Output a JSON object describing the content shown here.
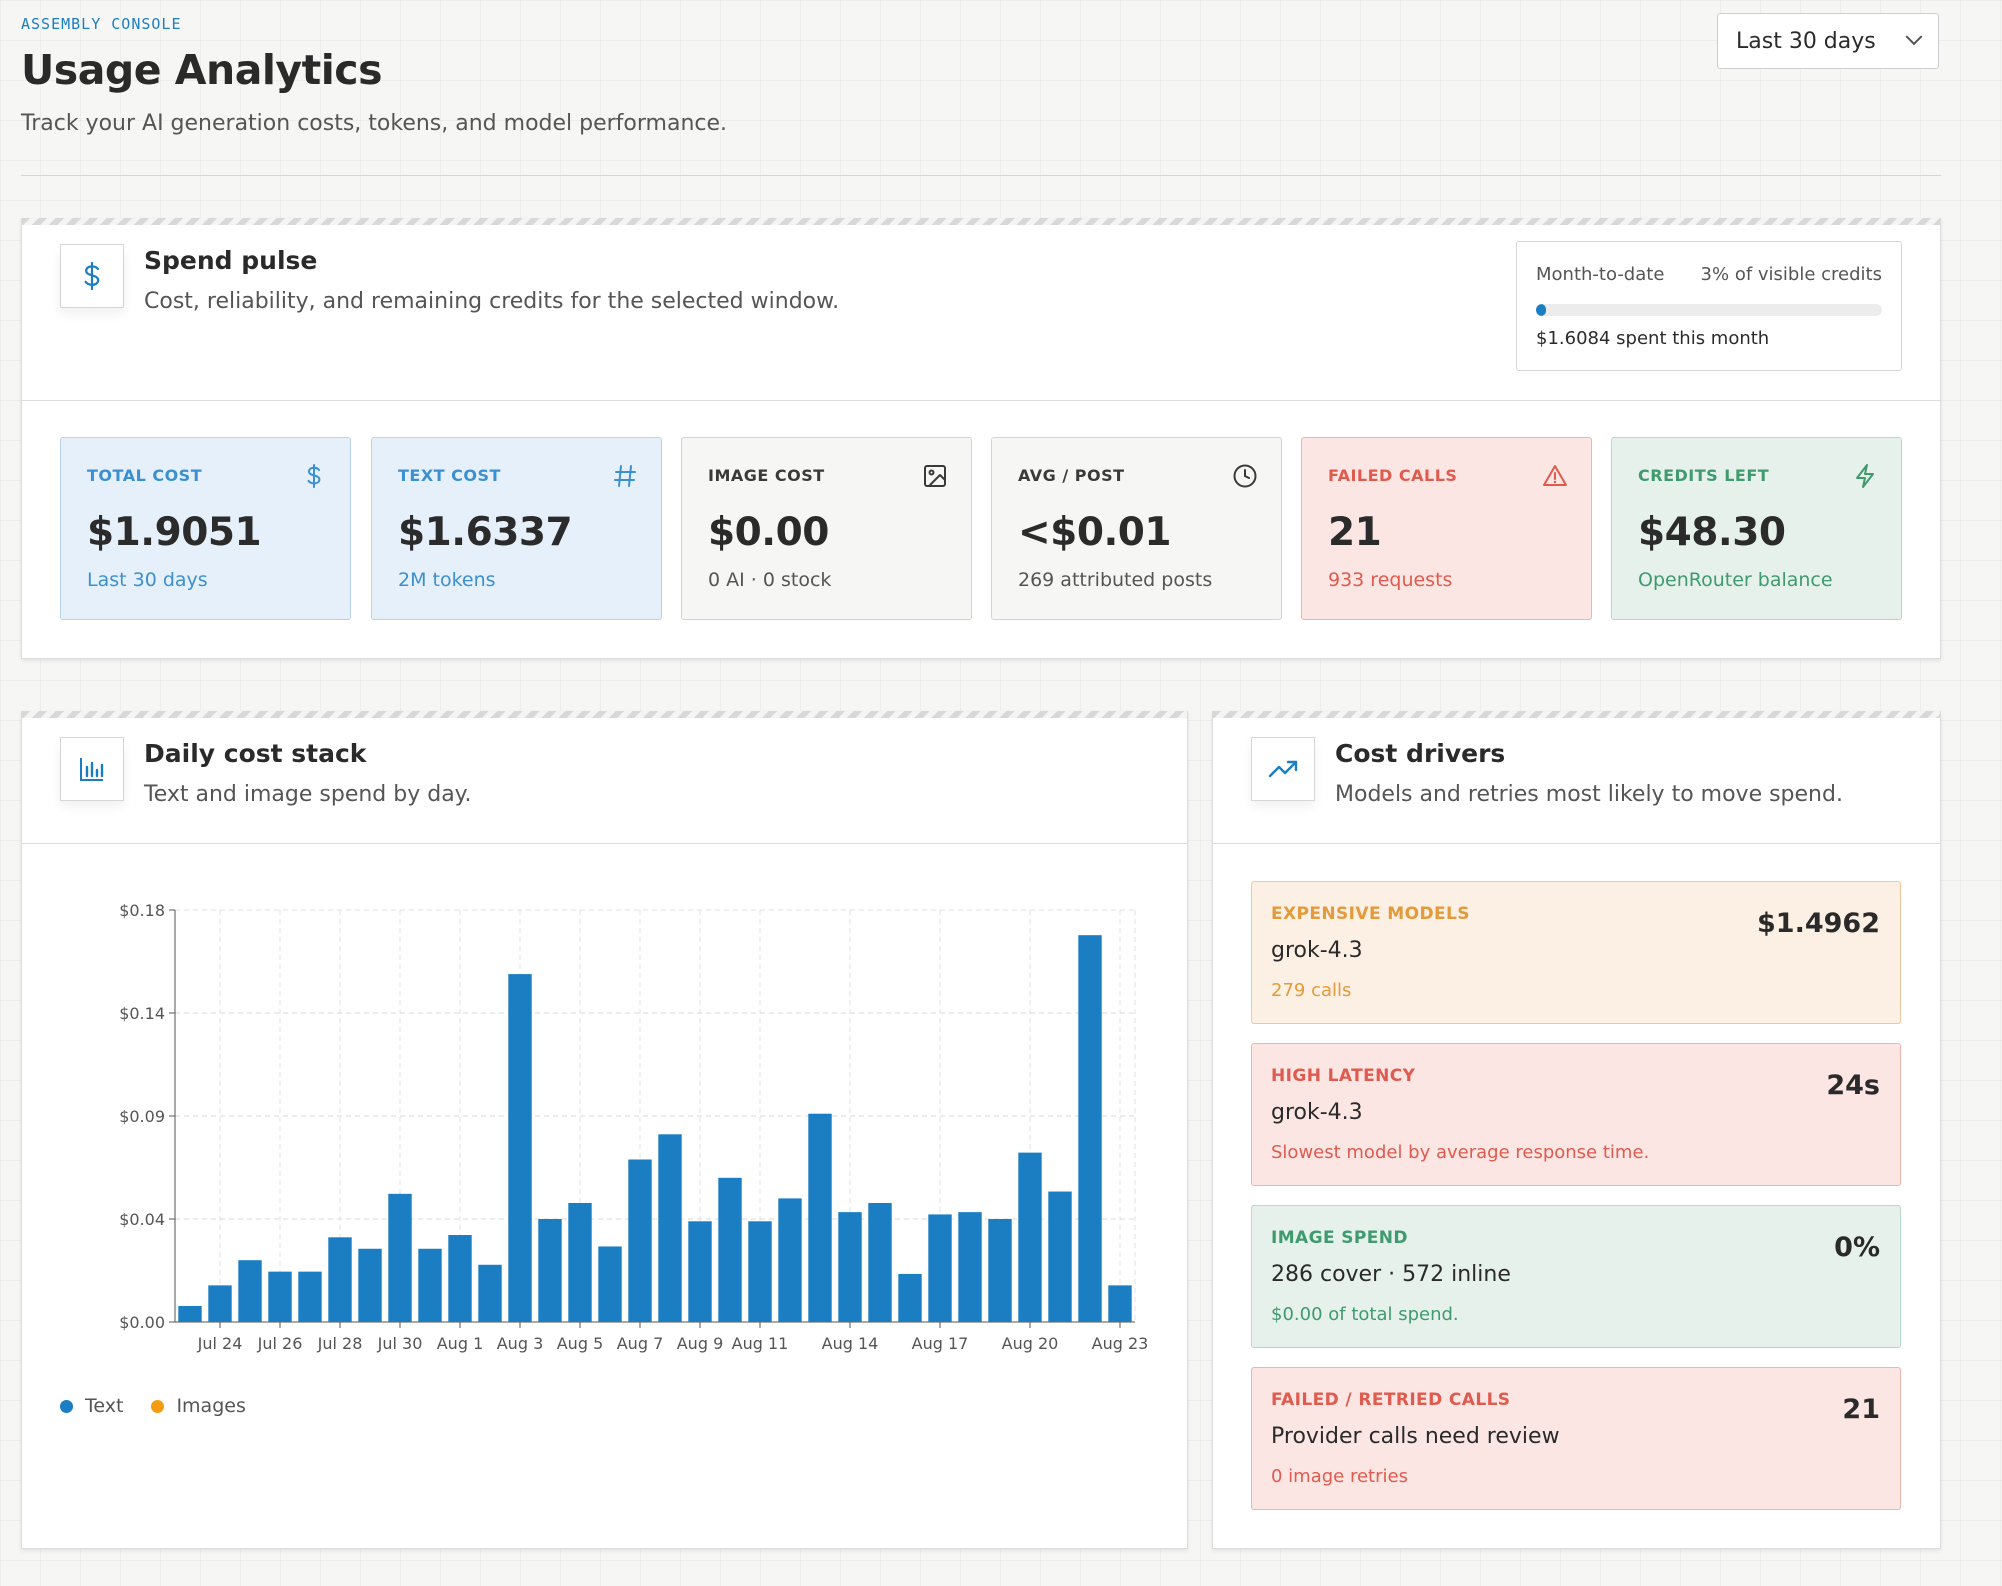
{
  "header": {
    "brand": "ASSEMBLY CONSOLE",
    "title": "Usage Analytics",
    "subtitle": "Track your AI generation costs, tokens, and model performance.",
    "range_select": "Last 30 days"
  },
  "spend_pulse": {
    "title": "Spend pulse",
    "subtitle": "Cost, reliability, and remaining credits for the selected window.",
    "icon": "dollar-icon",
    "month_to_date": {
      "label": "Month-to-date",
      "percent_label": "3% of visible credits",
      "percent": 3,
      "spent": "$1.6084 spent this month"
    },
    "stats": [
      {
        "label": "TOTAL COST",
        "value": "$1.9051",
        "note": "Last 30 days",
        "icon": "dollar-icon",
        "tone": "blue"
      },
      {
        "label": "TEXT COST",
        "value": "$1.6337",
        "note": "2M tokens",
        "icon": "hash-icon",
        "tone": "blue"
      },
      {
        "label": "IMAGE COST",
        "value": "$0.00",
        "note": "0 AI · 0 stock",
        "icon": "image-icon",
        "tone": "gray"
      },
      {
        "label": "AVG / POST",
        "value": "<$0.01",
        "note": "269 attributed posts",
        "icon": "clock-icon",
        "tone": "gray"
      },
      {
        "label": "FAILED CALLS",
        "value": "21",
        "note": "933 requests",
        "icon": "warning-icon",
        "tone": "red"
      },
      {
        "label": "CREDITS LEFT",
        "value": "$48.30",
        "note": "OpenRouter balance",
        "icon": "bolt-icon",
        "tone": "green"
      }
    ]
  },
  "daily_cost": {
    "title": "Daily cost stack",
    "subtitle": "Text and image spend by day.",
    "icon": "bar-chart-icon",
    "legend": [
      {
        "name": "Text",
        "color": "#1b7ec3"
      },
      {
        "name": "Images",
        "color": "#f39c12"
      }
    ]
  },
  "chart_data": {
    "type": "bar",
    "stacked": true,
    "title": "",
    "xlabel": "",
    "ylabel": "",
    "ylim": [
      0,
      0.18
    ],
    "yticks": [
      "$0.00",
      "$0.04",
      "$0.09",
      "$0.14",
      "$0.18"
    ],
    "xtick_labels": [
      "Jul 24",
      "Jul 26",
      "Jul 28",
      "Jul 30",
      "Aug 1",
      "Aug 3",
      "Aug 5",
      "Aug 7",
      "Aug 9",
      "Aug 11",
      "Aug 14",
      "Aug 17",
      "Aug 20",
      "Aug 23"
    ],
    "grid": true,
    "categories": [
      "Jul 23",
      "Jul 24",
      "Jul 25",
      "Jul 26",
      "Jul 27",
      "Jul 28",
      "Jul 29",
      "Jul 30",
      "Jul 31",
      "Aug 1",
      "Aug 2",
      "Aug 3",
      "Aug 4",
      "Aug 5",
      "Aug 6",
      "Aug 7",
      "Aug 8",
      "Aug 9",
      "Aug 10",
      "Aug 11",
      "Aug 12",
      "Aug 13",
      "Aug 14",
      "Aug 15",
      "Aug 16",
      "Aug 17",
      "Aug 18",
      "Aug 19",
      "Aug 20",
      "Aug 21",
      "Aug 22",
      "Aug 23"
    ],
    "series": [
      {
        "name": "Text",
        "color": "#1b7ec3",
        "values": [
          0.007,
          0.016,
          0.027,
          0.022,
          0.022,
          0.037,
          0.032,
          0.056,
          0.032,
          0.038,
          0.025,
          0.152,
          0.045,
          0.052,
          0.033,
          0.071,
          0.082,
          0.044,
          0.063,
          0.044,
          0.054,
          0.091,
          0.048,
          0.052,
          0.021,
          0.047,
          0.048,
          0.045,
          0.074,
          0.057,
          0.169,
          0.016
        ]
      },
      {
        "name": "Images",
        "color": "#f39c12",
        "values": [
          0,
          0,
          0,
          0,
          0,
          0,
          0,
          0,
          0,
          0,
          0,
          0,
          0,
          0,
          0,
          0,
          0,
          0,
          0,
          0,
          0,
          0,
          0,
          0,
          0,
          0,
          0,
          0,
          0,
          0,
          0,
          0
        ]
      }
    ]
  },
  "cost_drivers": {
    "title": "Cost drivers",
    "subtitle": "Models and retries most likely to move spend.",
    "icon": "trend-up-icon",
    "items": [
      {
        "label": "EXPENSIVE MODELS",
        "title": "grok-4.3",
        "note": "279 calls",
        "value": "$1.4962",
        "tone": "orange"
      },
      {
        "label": "HIGH LATENCY",
        "title": "grok-4.3",
        "note": "Slowest model by average response time.",
        "value": "24s",
        "tone": "red"
      },
      {
        "label": "IMAGE SPEND",
        "title": "286 cover · 572 inline",
        "note": "$0.00 of total spend.",
        "value": "0%",
        "tone": "green"
      },
      {
        "label": "FAILED / RETRIED CALLS",
        "title": "Provider calls need review",
        "note": "0 image retries",
        "value": "21",
        "tone": "red"
      }
    ]
  }
}
